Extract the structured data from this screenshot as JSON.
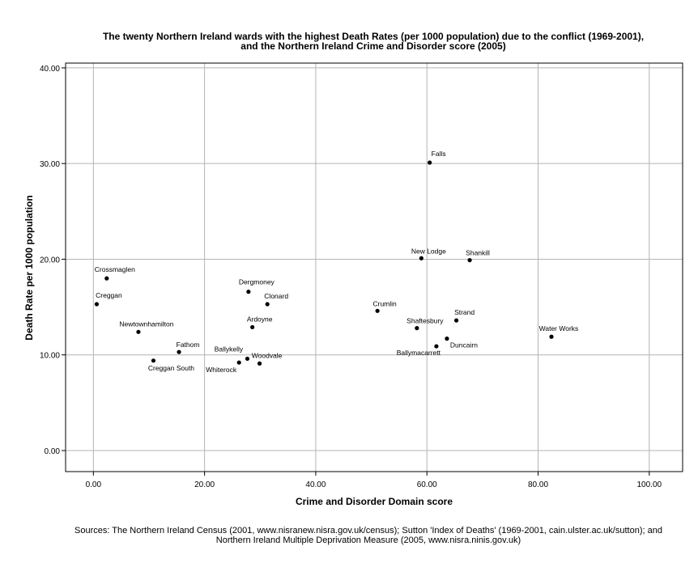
{
  "chart_data": {
    "type": "scatter",
    "title_lines": [
      "The twenty Northern Ireland wards with the highest Death Rates (per 1000 population) due to the conflict (1969-2001),",
      "and the Northern Ireland Crime and Disorder score (2005)"
    ],
    "xlabel": "Crime and Disorder Domain score",
    "ylabel": "Death Rate per 1000 population",
    "xlim": [
      -5,
      106
    ],
    "ylim": [
      -2.2,
      40.5
    ],
    "x_ticks": [
      0,
      20,
      40,
      60,
      80,
      100
    ],
    "y_ticks": [
      0,
      10,
      20,
      30,
      40
    ],
    "x_tick_labels": [
      "0.00",
      "20.00",
      "40.00",
      "60.00",
      "80.00",
      "100.00"
    ],
    "y_tick_labels": [
      "0.00",
      "10.00",
      "20.00",
      "30.00",
      "40.00"
    ],
    "grid": true,
    "points": [
      {
        "label": "Falls",
        "x": 60.5,
        "y": 30.1
      },
      {
        "label": "New Lodge",
        "x": 59.0,
        "y": 20.1
      },
      {
        "label": "Shankill",
        "x": 67.7,
        "y": 19.9
      },
      {
        "label": "Crossmaglen",
        "x": 2.4,
        "y": 18.0
      },
      {
        "label": "Dergmoney",
        "x": 27.9,
        "y": 16.6
      },
      {
        "label": "Creggan",
        "x": 0.6,
        "y": 15.3
      },
      {
        "label": "Clonard",
        "x": 31.3,
        "y": 15.3
      },
      {
        "label": "Crumlin",
        "x": 51.1,
        "y": 14.6
      },
      {
        "label": "Strand",
        "x": 65.3,
        "y": 13.6
      },
      {
        "label": "Ardoyne",
        "x": 28.6,
        "y": 12.9
      },
      {
        "label": "Shaftesbury",
        "x": 58.2,
        "y": 12.8
      },
      {
        "label": "Newtownhamilton",
        "x": 8.1,
        "y": 12.4
      },
      {
        "label": "Water Works",
        "x": 82.4,
        "y": 11.9
      },
      {
        "label": "Duncairn",
        "x": 63.6,
        "y": 11.7
      },
      {
        "label": "Ballymacarrett",
        "x": 61.7,
        "y": 10.9
      },
      {
        "label": "Fathom",
        "x": 15.4,
        "y": 10.3
      },
      {
        "label": "Ballykelly",
        "x": 27.7,
        "y": 9.6
      },
      {
        "label": "Creggan South",
        "x": 10.8,
        "y": 9.4
      },
      {
        "label": "Whiterock",
        "x": 26.2,
        "y": 9.2
      },
      {
        "label": "Woodvale",
        "x": 29.9,
        "y": 9.1
      }
    ]
  },
  "sources_lines": [
    "Sources: The Northern Ireland Census (2001, www.nisranew.nisra.gov.uk/census); Sutton 'Index of Deaths' (1969-2001, cain.ulster.ac.uk/sutton); and",
    "Northern Ireland Multiple Deprivation Measure (2005, www.nisra.ninis.gov.uk)"
  ]
}
